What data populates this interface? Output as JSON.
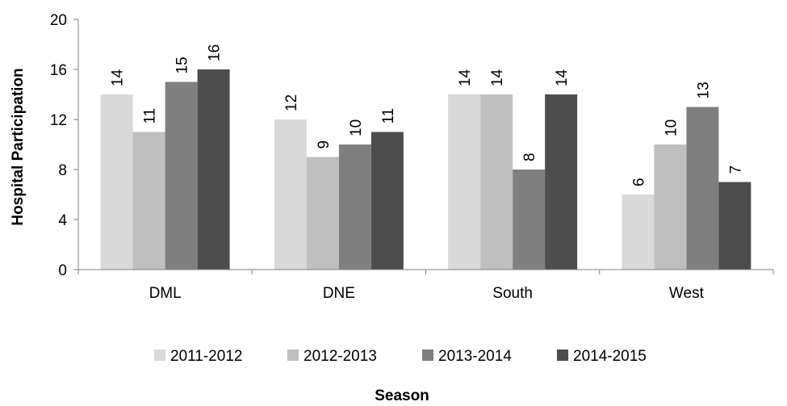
{
  "chart_data": {
    "type": "bar",
    "categories": [
      "DML",
      "DNE",
      "South",
      "West"
    ],
    "series": [
      {
        "name": "2011-2012",
        "color": "#d9d9d9",
        "values": [
          14,
          12,
          14,
          6
        ]
      },
      {
        "name": "2012-2013",
        "color": "#bfbfbf",
        "values": [
          11,
          9,
          14,
          10
        ]
      },
      {
        "name": "2013-2014",
        "color": "#7f7f7f",
        "values": [
          15,
          10,
          8,
          13
        ]
      },
      {
        "name": "2014-2015",
        "color": "#4d4d4d",
        "values": [
          16,
          11,
          14,
          7
        ]
      }
    ],
    "xlabel": "Season",
    "ylabel": "Hospital Participation",
    "ylim": [
      0,
      20
    ],
    "yticks": [
      0,
      4,
      8,
      12,
      16,
      20
    ],
    "grid": false,
    "legend_position": "bottom",
    "data_labels": true
  }
}
